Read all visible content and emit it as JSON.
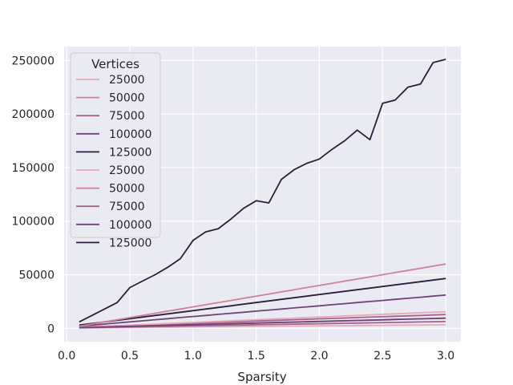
{
  "chart_data": {
    "type": "line",
    "title": "",
    "xlabel": "Sparsity",
    "ylabel": "",
    "xlim": [
      -0.02,
      3.12
    ],
    "ylim": [
      -12500,
      263000
    ],
    "xticks": [
      0.0,
      0.5,
      1.0,
      1.5,
      2.0,
      2.5,
      3.0
    ],
    "xtick_labels": [
      "0.0",
      "0.5",
      "1.0",
      "1.5",
      "2.0",
      "2.5",
      "3.0"
    ],
    "yticks": [
      0,
      50000,
      100000,
      150000,
      200000,
      250000
    ],
    "ytick_labels": [
      "0",
      "50000",
      "100000",
      "150000",
      "200000",
      "250000"
    ],
    "grid": true,
    "legend": {
      "title": "Vertices",
      "position": "top-left",
      "entries": [
        "25000",
        "50000",
        "75000",
        "100000",
        "125000",
        "25000",
        "50000",
        "75000",
        "100000",
        "125000"
      ]
    },
    "x": [
      0.1,
      0.2,
      0.3,
      0.4,
      0.5,
      0.6,
      0.7,
      0.8,
      0.9,
      1.0,
      1.1,
      1.2,
      1.3,
      1.4,
      1.5,
      1.6,
      1.7,
      1.8,
      1.9,
      2.0,
      2.1,
      2.2,
      2.3,
      2.4,
      2.5,
      2.6,
      2.7,
      2.8,
      2.9,
      3.0
    ],
    "series": [
      {
        "name": "25000",
        "color": "#e8a9b4",
        "values": [
          300,
          400,
          500,
          600,
          800,
          900,
          1000,
          1100,
          1200,
          1300,
          1400,
          1500,
          1600,
          1700,
          1800,
          1900,
          2000,
          2100,
          2200,
          2300,
          2400,
          2500,
          2600,
          2700,
          2800,
          2900,
          3000,
          3100,
          3200,
          3300
        ]
      },
      {
        "name": "50000",
        "color": "#cf80a1",
        "values": [
          800,
          1100,
          1400,
          1700,
          2000,
          2300,
          2600,
          2900,
          3200,
          3500,
          3800,
          4100,
          4400,
          4700,
          5000,
          5300,
          5600,
          5900,
          6200,
          6500,
          6800,
          7100,
          7400,
          7700,
          8000,
          8300,
          8600,
          8900,
          9200,
          9500
        ]
      },
      {
        "name": "75000",
        "color": "#a4628f",
        "values": [
          1200,
          1600,
          2000,
          2400,
          2800,
          3200,
          3600,
          4000,
          4400,
          4800,
          5200,
          5600,
          6000,
          6400,
          6800,
          7200,
          7600,
          8000,
          8400,
          8800,
          9200,
          9600,
          10000,
          10400,
          10800,
          11200,
          11600,
          12000,
          12400,
          12800
        ]
      },
      {
        "name": "100000",
        "color": "#6e4478",
        "values": [
          2000,
          3000,
          4000,
          5000,
          6000,
          7000,
          8000,
          9000,
          10000,
          11000,
          12000,
          13000,
          14000,
          15000,
          16000,
          17000,
          18000,
          19000,
          20000,
          21000,
          22000,
          23000,
          24000,
          25000,
          26000,
          27000,
          28000,
          29000,
          30000,
          31000
        ]
      },
      {
        "name": "125000",
        "color": "#2d1e3e",
        "values": [
          3000,
          4500,
          6000,
          7500,
          9000,
          10500,
          12000,
          13500,
          15000,
          16500,
          18000,
          19500,
          21000,
          22500,
          24000,
          25500,
          27000,
          28500,
          30000,
          31500,
          33000,
          34500,
          36000,
          37500,
          39000,
          40500,
          42000,
          43500,
          45000,
          46500
        ]
      },
      {
        "name": "25000",
        "color": "#e8a9b4",
        "values": [
          1000,
          1500,
          2000,
          2500,
          3000,
          3500,
          4000,
          4500,
          5000,
          5500,
          6000,
          6500,
          7000,
          7500,
          8000,
          8500,
          9000,
          9500,
          10000,
          10500,
          11000,
          11500,
          12000,
          12500,
          13000,
          13500,
          14000,
          14500,
          15000,
          15500
        ]
      },
      {
        "name": "50000",
        "color": "#cf80a1",
        "values": [
          2000,
          4000,
          6000,
          8000,
          10000,
          12000,
          14000,
          16000,
          18000,
          20000,
          22000,
          24000,
          26000,
          28000,
          30000,
          32000,
          34000,
          36000,
          38000,
          40000,
          42000,
          44000,
          46000,
          48000,
          50000,
          52000,
          54000,
          56000,
          58000,
          60000
        ]
      },
      {
        "name": "75000",
        "color": "#a4628f",
        "values": [
          500,
          700,
          900,
          1100,
          1300,
          1500,
          1700,
          1900,
          2100,
          2300,
          2500,
          2700,
          2900,
          3100,
          3300,
          3500,
          3700,
          3900,
          4100,
          4300,
          4500,
          4700,
          4900,
          5100,
          5300,
          5500,
          5700,
          5900,
          6100,
          6300
        ]
      },
      {
        "name": "100000",
        "color": "#6e4478",
        "values": [
          700,
          1000,
          1300,
          1600,
          1900,
          2200,
          2500,
          2800,
          3100,
          3400,
          3700,
          4000,
          4300,
          4600,
          4900,
          5200,
          5500,
          5800,
          6100,
          6400,
          6700,
          7000,
          7300,
          7600,
          7900,
          8200,
          8500,
          8800,
          9100,
          9400
        ]
      },
      {
        "name": "125000",
        "color": "#2d1e3e",
        "values": [
          6000,
          12000,
          18000,
          24000,
          38000,
          44000,
          50000,
          57000,
          65000,
          82000,
          90000,
          93000,
          102000,
          112000,
          119000,
          117000,
          139000,
          148000,
          154000,
          158000,
          167000,
          175000,
          185000,
          176000,
          210000,
          213000,
          225000,
          228000,
          248000,
          251000
        ]
      }
    ]
  }
}
